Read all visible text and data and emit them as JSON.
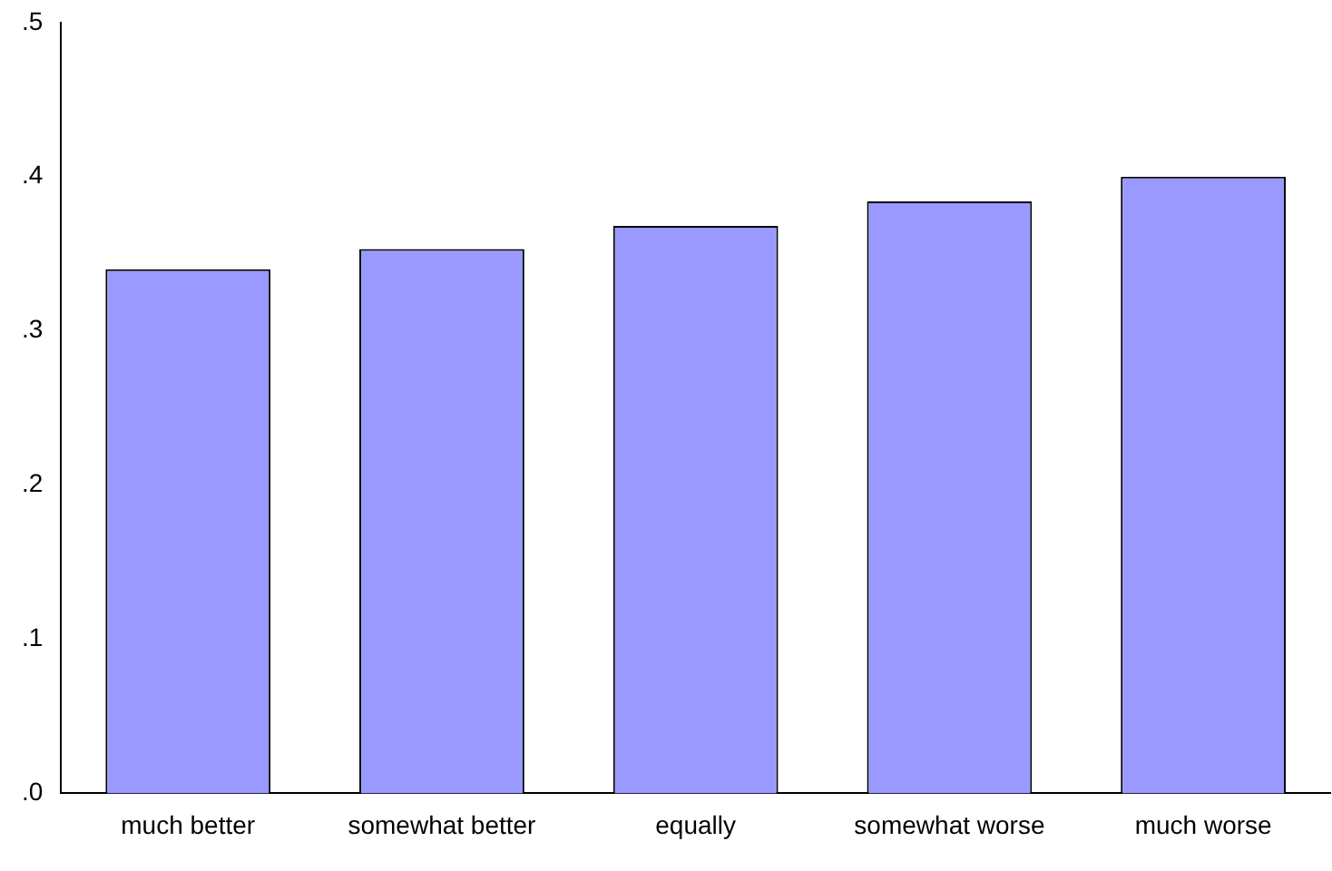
{
  "chart_data": {
    "type": "bar",
    "categories": [
      "much better",
      "somewhat better",
      "equally",
      "somewhat worse",
      "much worse"
    ],
    "values": [
      0.34,
      0.353,
      0.368,
      0.384,
      0.4
    ],
    "color": "#9999ff",
    "ylim": [
      0,
      0.5
    ],
    "yticks": [
      {
        "value": 0,
        "label": ".0"
      },
      {
        "value": 0.1,
        "label": ".1"
      },
      {
        "value": 0.2,
        "label": ".2"
      },
      {
        "value": 0.3,
        "label": ".3"
      },
      {
        "value": 0.4,
        "label": ".4"
      },
      {
        "value": 0.5,
        "label": ".5"
      }
    ],
    "grid": false,
    "legend": false
  }
}
